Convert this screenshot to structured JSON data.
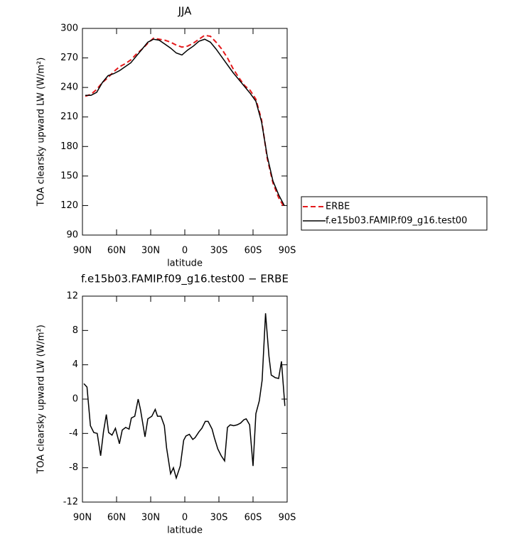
{
  "chart_data": [
    {
      "type": "line",
      "title": "JJA",
      "x_label": "latitude",
      "y_label": "TOA clearsky upward LW (W/m²)",
      "xlim": [
        90,
        -90
      ],
      "xticks": [
        {
          "value": 90,
          "label": "90N"
        },
        {
          "value": 60,
          "label": "60N"
        },
        {
          "value": 30,
          "label": "30N"
        },
        0,
        {
          "value": -30,
          "label": "30S"
        },
        {
          "value": -60,
          "label": "60S"
        },
        {
          "value": -90,
          "label": "90S"
        }
      ],
      "ylim": [
        90,
        300
      ],
      "yticks": [
        90,
        120,
        150,
        180,
        210,
        240,
        270,
        300
      ],
      "x": [
        87.5,
        82.5,
        77.5,
        72.5,
        67.5,
        62.5,
        57.5,
        52.5,
        47.5,
        42.5,
        37.5,
        32.5,
        27.5,
        22.5,
        17.5,
        12.5,
        7.5,
        2.5,
        -2.5,
        -7.5,
        -12.5,
        -17.5,
        -22.5,
        -27.5,
        -32.5,
        -37.5,
        -42.5,
        -47.5,
        -52.5,
        -57.5,
        -62.5,
        -67.5,
        -72.5,
        -77.5,
        -82.5,
        -87.5
      ],
      "series": [
        {
          "name": "ERBE",
          "color": "#e41a1c",
          "line_style": "dashed",
          "values": [
            231,
            233,
            238,
            245,
            250,
            256,
            261,
            264,
            268,
            274,
            279,
            285,
            290,
            289,
            288,
            286,
            283,
            281,
            282,
            285,
            289,
            293,
            292,
            286,
            279,
            270,
            259,
            250,
            242,
            237,
            228,
            207,
            168,
            143,
            128,
            118
          ]
        },
        {
          "name": "f.e15b03.FAMIP.f09_g16.test00",
          "color": "#000000",
          "line_style": "solid",
          "values": [
            232,
            232,
            235,
            245,
            252,
            254,
            257,
            261,
            265,
            272,
            279,
            286,
            289,
            288,
            284,
            280,
            275,
            273,
            278,
            282,
            287,
            289,
            286,
            279,
            271,
            263,
            255,
            248,
            241,
            234,
            226,
            205,
            170,
            145,
            131,
            120
          ]
        }
      ]
    },
    {
      "type": "line",
      "title": "f.e15b03.FAMIP.f09_g16.test00 − ERBE",
      "x_label": "latitude",
      "y_label": "TOA clearsky upward LW (W/m²)",
      "xlim": [
        90,
        -90
      ],
      "xticks": [
        {
          "value": 90,
          "label": "90N"
        },
        {
          "value": 60,
          "label": "60N"
        },
        {
          "value": 30,
          "label": "30N"
        },
        0,
        {
          "value": -30,
          "label": "30S"
        },
        {
          "value": -60,
          "label": "60S"
        },
        {
          "value": -90,
          "label": "90S"
        }
      ],
      "ylim": [
        -12,
        12
      ],
      "yticks": [
        -12,
        -8,
        -4,
        0,
        4,
        8,
        12
      ],
      "x": [
        88.75,
        86,
        83,
        80,
        77,
        74,
        71.5,
        69,
        67,
        64,
        61,
        57.5,
        55,
        52,
        49,
        47,
        44,
        41,
        39,
        35,
        32.5,
        29,
        26,
        24,
        21,
        18,
        16,
        12.5,
        10,
        7.5,
        4,
        1,
        -1,
        -4,
        -7,
        -9,
        -12.5,
        -15,
        -18,
        -20.5,
        -24,
        -26,
        -29,
        -32,
        -35,
        -37.5,
        -40,
        -43,
        -46,
        -49,
        -52,
        -54,
        -57,
        -60,
        -62.5,
        -65.5,
        -68,
        -71,
        -74,
        -76,
        -79.5,
        -82.5,
        -85,
        -88
      ],
      "color": "#000000",
      "values": [
        1.8,
        1.4,
        -3.1,
        -3.9,
        -4.0,
        -6.6,
        -3.8,
        -1.8,
        -3.9,
        -4.2,
        -3.4,
        -5.2,
        -3.6,
        -3.3,
        -3.5,
        -2.2,
        -2.0,
        0,
        -1.2,
        -4.4,
        -2.3,
        -2.0,
        -1.2,
        -2.0,
        -2.0,
        -3.1,
        -5.7,
        -8.7,
        -8.0,
        -9.2,
        -7.8,
        -4.8,
        -4.3,
        -4.1,
        -4.7,
        -4.5,
        -3.8,
        -3.4,
        -2.6,
        -2.6,
        -3.5,
        -4.5,
        -5.8,
        -6.6,
        -7.2,
        -3.3,
        -3.0,
        -3.1,
        -3.0,
        -2.8,
        -2.4,
        -2.3,
        -3.0,
        -7.8,
        -1.7,
        -0.2,
        2.2,
        10.0,
        5.0,
        2.8,
        2.5,
        2.4,
        4.4,
        -0.8
      ]
    }
  ]
}
